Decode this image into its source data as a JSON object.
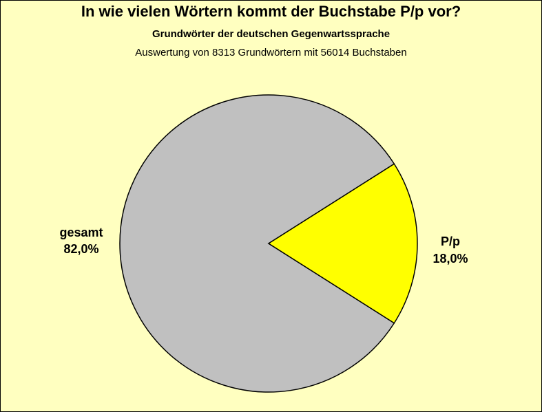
{
  "chart_data": {
    "type": "pie",
    "title": "In wie vielen Wörtern kommt der Buchstabe P/p vor?",
    "subtitle": "Grundwörter der deutschen Gegenwartssprache",
    "subtitle2": "Auswertung von 8313 Grundwörtern mit 56014 Buchstaben",
    "slices": [
      {
        "label": "gesamt",
        "value": 82.0,
        "value_label": "82,0%",
        "color": "#c0c0c0"
      },
      {
        "label": "P/p",
        "value": 18.0,
        "value_label": "18,0%",
        "color": "#ffff00"
      }
    ]
  },
  "colors": {
    "background": "#ffffc0",
    "outline": "#000000"
  }
}
